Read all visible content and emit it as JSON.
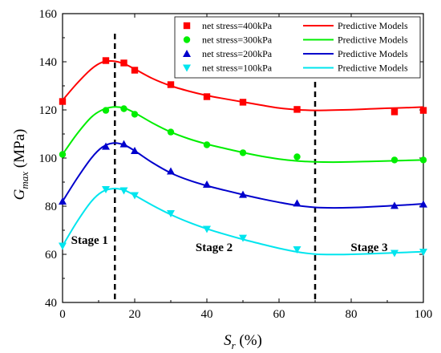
{
  "chart_data": {
    "type": "scatter",
    "title": "",
    "xlabel": {
      "main": "S",
      "sub": "r",
      "unit": " (%)"
    },
    "ylabel": {
      "main": "G",
      "sub": "max",
      "unit": " (MPa)"
    },
    "xlim": [
      0,
      100
    ],
    "ylim": [
      40,
      160
    ],
    "xticks": [
      0,
      20,
      40,
      60,
      80,
      100
    ],
    "yticks": [
      40,
      60,
      80,
      100,
      120,
      140,
      160
    ],
    "grid": false,
    "legend_position": "top-right",
    "stage_dividers": [
      14.5,
      70
    ],
    "stage_labels": [
      {
        "text": "Stage 1",
        "x": 7.5,
        "y": 66
      },
      {
        "text": "Stage 2",
        "x": 42,
        "y": 63
      },
      {
        "text": "Stage 3",
        "x": 85,
        "y": 63
      }
    ],
    "series": [
      {
        "name": "net stress=400kPa",
        "model_name": "Predictive Models",
        "color": "#ff0000",
        "marker": "square",
        "points": [
          [
            0,
            123.5
          ],
          [
            12,
            140.5
          ],
          [
            17,
            139.5
          ],
          [
            20,
            136.5
          ],
          [
            30,
            130.5
          ],
          [
            40,
            125.5
          ],
          [
            50,
            123.2
          ],
          [
            65,
            120.2
          ],
          [
            92,
            119.2
          ],
          [
            100,
            119.8
          ]
        ],
        "model": [
          [
            0,
            124
          ],
          [
            4,
            131
          ],
          [
            8,
            137
          ],
          [
            11,
            139.8
          ],
          [
            14,
            140.3
          ],
          [
            17,
            139.2
          ],
          [
            20,
            137
          ],
          [
            25,
            133
          ],
          [
            30,
            130
          ],
          [
            35,
            127.8
          ],
          [
            40,
            126
          ],
          [
            45,
            124.6
          ],
          [
            50,
            123.3
          ],
          [
            55,
            122
          ],
          [
            60,
            120.8
          ],
          [
            65,
            120.1
          ],
          [
            70,
            119.8
          ],
          [
            75,
            119.9
          ],
          [
            80,
            120.1
          ],
          [
            85,
            120.4
          ],
          [
            90,
            120.7
          ],
          [
            95,
            120.9
          ],
          [
            100,
            121.2
          ]
        ]
      },
      {
        "name": "net stress=300kPa",
        "model_name": "Predictive Models",
        "color": "#00ee00",
        "marker": "circle",
        "points": [
          [
            0,
            101.5
          ],
          [
            12,
            119.8
          ],
          [
            17,
            120.5
          ],
          [
            20,
            118.2
          ],
          [
            30,
            110.8
          ],
          [
            40,
            105.5
          ],
          [
            50,
            102.2
          ],
          [
            65,
            100.5
          ],
          [
            92,
            99.2
          ],
          [
            100,
            99.2
          ]
        ],
        "model": [
          [
            0,
            101.5
          ],
          [
            4,
            110
          ],
          [
            8,
            117
          ],
          [
            11,
            120
          ],
          [
            14,
            121.2
          ],
          [
            17,
            120.8
          ],
          [
            20,
            118.8
          ],
          [
            25,
            114.5
          ],
          [
            30,
            110.8
          ],
          [
            35,
            108
          ],
          [
            40,
            105.8
          ],
          [
            45,
            104
          ],
          [
            50,
            102.3
          ],
          [
            55,
            100.8
          ],
          [
            60,
            99.6
          ],
          [
            65,
            98.8
          ],
          [
            70,
            98.4
          ],
          [
            75,
            98.3
          ],
          [
            80,
            98.4
          ],
          [
            85,
            98.6
          ],
          [
            90,
            98.8
          ],
          [
            95,
            99
          ],
          [
            100,
            99.2
          ]
        ]
      },
      {
        "name": "net stress=200kPa",
        "model_name": "Predictive Models",
        "color": "#0000cc",
        "marker": "triangle-up",
        "points": [
          [
            0,
            82
          ],
          [
            12,
            104.8
          ],
          [
            17,
            105.8
          ],
          [
            20,
            103
          ],
          [
            30,
            94.5
          ],
          [
            40,
            89
          ],
          [
            50,
            84.8
          ],
          [
            65,
            81.2
          ],
          [
            92,
            80.2
          ],
          [
            100,
            80.8
          ]
        ],
        "model": [
          [
            0,
            82
          ],
          [
            4,
            91.5
          ],
          [
            8,
            100
          ],
          [
            11,
            104.5
          ],
          [
            14,
            106.2
          ],
          [
            17,
            105.5
          ],
          [
            20,
            103
          ],
          [
            25,
            98
          ],
          [
            30,
            93.8
          ],
          [
            35,
            90.8
          ],
          [
            40,
            88.5
          ],
          [
            45,
            86.6
          ],
          [
            50,
            84.8
          ],
          [
            55,
            83.1
          ],
          [
            60,
            81.6
          ],
          [
            65,
            80.3
          ],
          [
            70,
            79.5
          ],
          [
            75,
            79.3
          ],
          [
            80,
            79.4
          ],
          [
            85,
            79.7
          ],
          [
            90,
            80.1
          ],
          [
            95,
            80.5
          ],
          [
            100,
            81
          ]
        ]
      },
      {
        "name": "net stress=100kPa",
        "model_name": "Predictive Models",
        "color": "#00e5ee",
        "marker": "triangle-down",
        "points": [
          [
            0,
            63.5
          ],
          [
            12,
            87
          ],
          [
            17,
            86.5
          ],
          [
            20,
            84.5
          ],
          [
            30,
            77
          ],
          [
            40,
            70.5
          ],
          [
            50,
            66.8
          ],
          [
            65,
            62
          ],
          [
            92,
            60.5
          ],
          [
            100,
            61
          ]
        ],
        "model": [
          [
            0,
            63.5
          ],
          [
            4,
            73.5
          ],
          [
            8,
            82
          ],
          [
            11,
            86
          ],
          [
            14,
            87.3
          ],
          [
            17,
            86.7
          ],
          [
            20,
            84.5
          ],
          [
            25,
            80.3
          ],
          [
            30,
            76.5
          ],
          [
            35,
            73.3
          ],
          [
            40,
            70.6
          ],
          [
            45,
            68.3
          ],
          [
            50,
            66.2
          ],
          [
            55,
            64.3
          ],
          [
            60,
            62.5
          ],
          [
            65,
            61
          ],
          [
            70,
            60.1
          ],
          [
            75,
            59.9
          ],
          [
            80,
            60
          ],
          [
            85,
            60.2
          ],
          [
            90,
            60.5
          ],
          [
            95,
            60.8
          ],
          [
            100,
            61.1
          ]
        ]
      }
    ]
  }
}
